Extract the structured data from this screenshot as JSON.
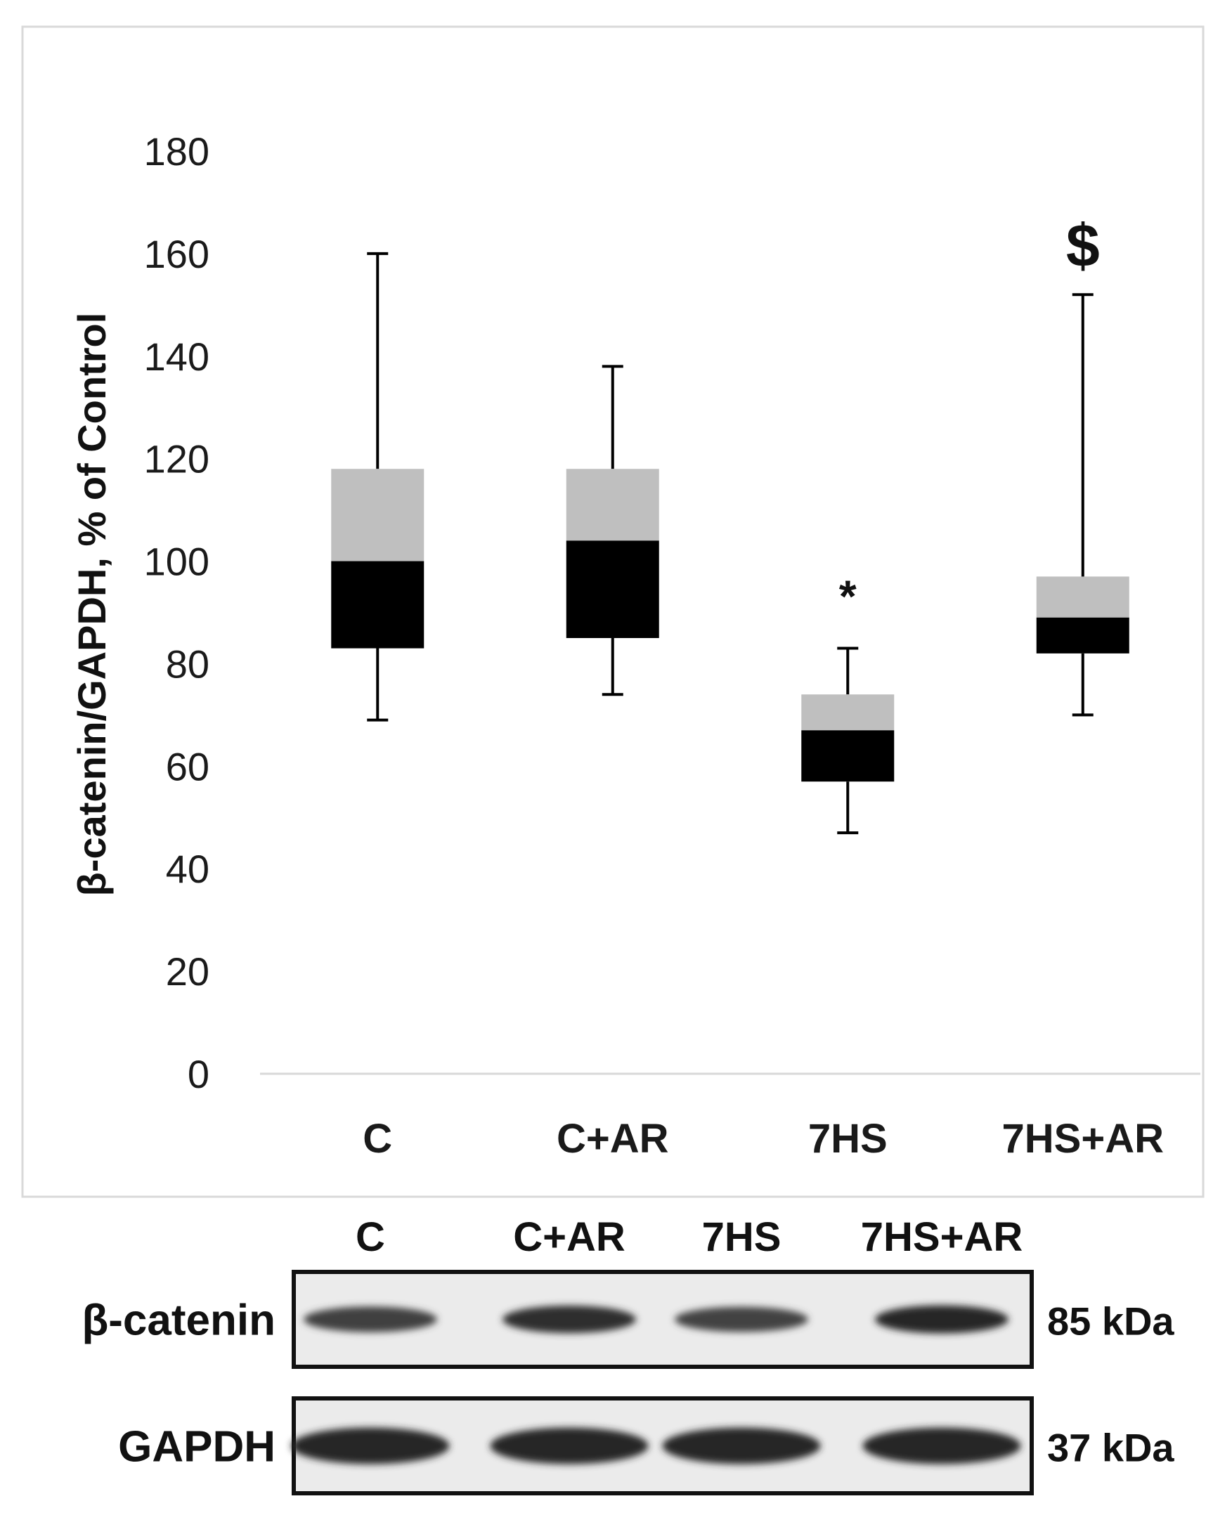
{
  "chart_data": {
    "type": "box",
    "ylabel": "β-catenin/GAPDH, % of Control",
    "xlabel": "",
    "ylim": [
      0,
      180
    ],
    "yticks": [
      0,
      20,
      40,
      60,
      80,
      100,
      120,
      140,
      160,
      180
    ],
    "grid": false,
    "categories": [
      "C",
      "C+AR",
      "7HS",
      "7HS+AR"
    ],
    "boxes": [
      {
        "category": "C",
        "min": 69,
        "q1": 83,
        "median": 100,
        "q3": 118,
        "max": 160,
        "annotation": ""
      },
      {
        "category": "C+AR",
        "min": 74,
        "q1": 85,
        "median": 104,
        "q3": 118,
        "max": 138,
        "annotation": ""
      },
      {
        "category": "7HS",
        "min": 47,
        "q1": 57,
        "median": 67,
        "q3": 74,
        "max": 83,
        "annotation": "*"
      },
      {
        "category": "7HS+AR",
        "min": 70,
        "q1": 82,
        "median": 89,
        "q3": 97,
        "max": 152,
        "annotation": "$"
      }
    ],
    "colors": {
      "lower_box": "#000000",
      "upper_box": "#bfbfbf",
      "whisker": "#000000",
      "axis": "#d9d9d9"
    }
  },
  "blot": {
    "lanes": [
      "C",
      "C+AR",
      "7HS",
      "7HS+AR"
    ],
    "rows": [
      {
        "label": "β-catenin",
        "size": "85 kDa",
        "intensity": [
          0.75,
          0.95,
          0.7,
          1.0
        ]
      },
      {
        "label": "GAPDH",
        "size": "37 kDa",
        "intensity": [
          1.0,
          1.0,
          1.0,
          1.0
        ]
      }
    ]
  }
}
